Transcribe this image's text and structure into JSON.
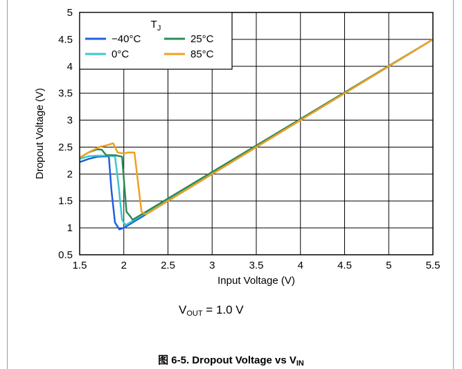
{
  "condition": {
    "main": "V",
    "sub": "OUT",
    "rest": " = 1.0 V"
  },
  "caption": {
    "prefix": "图 6-5. Dropout Voltage vs V",
    "sub": "IN"
  },
  "chart_data": {
    "type": "line",
    "title": "",
    "xlabel": "Input Voltage (V)",
    "ylabel": "Dropout Voltage (V)",
    "xlim": [
      1.5,
      5.5
    ],
    "ylim": [
      0.5,
      5
    ],
    "xticks": [
      1.5,
      2,
      2.5,
      3,
      3.5,
      4,
      4.5,
      5,
      5.5
    ],
    "xtick_labels": [
      "1.5",
      "2",
      "2.5",
      "3",
      "3.5",
      "4",
      "4.5",
      "5",
      "5.5"
    ],
    "yticks": [
      0.5,
      1,
      1.5,
      2,
      2.5,
      3,
      3.5,
      4,
      4.5,
      5
    ],
    "ytick_labels": [
      "0.5",
      "1",
      "1.5",
      "2",
      "2.5",
      "3",
      "3.5",
      "4",
      "4.5",
      "5"
    ],
    "grid": true,
    "legend": {
      "title": "T",
      "title_sub": "J",
      "placement": "top-left"
    },
    "series": [
      {
        "name": "−40°C",
        "color": "#1f5fe0",
        "x": [
          1.5,
          1.6,
          1.7,
          1.83,
          1.86,
          1.9,
          1.95,
          2.0,
          5.5
        ],
        "y": [
          2.22,
          2.28,
          2.32,
          2.33,
          1.7,
          1.1,
          0.97,
          1.0,
          4.5
        ]
      },
      {
        "name": "0°C",
        "color": "#3cc8c8",
        "x": [
          1.5,
          1.6,
          1.7,
          1.8,
          1.9,
          1.94,
          1.98,
          2.02,
          5.5
        ],
        "y": [
          2.28,
          2.33,
          2.34,
          2.34,
          2.33,
          1.8,
          1.15,
          1.05,
          4.5
        ]
      },
      {
        "name": "25°C",
        "color": "#2e8b57",
        "x": [
          1.5,
          1.6,
          1.7,
          1.75,
          1.8,
          1.9,
          1.98,
          2.03,
          2.08,
          2.1,
          5.5
        ],
        "y": [
          2.3,
          2.4,
          2.46,
          2.45,
          2.35,
          2.35,
          2.32,
          1.3,
          1.2,
          1.15,
          4.5
        ]
      },
      {
        "name": "85°C",
        "color": "#f0a020",
        "x": [
          1.5,
          1.6,
          1.72,
          1.8,
          1.88,
          1.93,
          2.0,
          2.05,
          2.12,
          2.2,
          2.25,
          5.5
        ],
        "y": [
          2.3,
          2.4,
          2.5,
          2.53,
          2.57,
          2.4,
          2.38,
          2.4,
          2.4,
          1.3,
          1.25,
          4.5
        ]
      }
    ]
  }
}
